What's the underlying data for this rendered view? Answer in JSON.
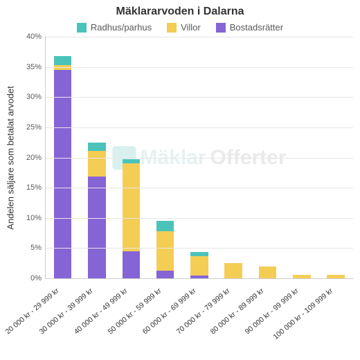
{
  "chart": {
    "type": "stacked-bar",
    "title": "Mäklararvoden i Dalarna",
    "title_fontsize": 16,
    "ylabel": "Andelen säljare som betalat arvodet",
    "ylabel_fontsize": 13,
    "ylim": [
      0,
      40
    ],
    "ytick_step": 5,
    "y_suffix": "%",
    "background_color": "#ffffff",
    "grid_color": "#e6e6e6",
    "axis_color": "#cccccc",
    "tick_font_color": "#595959",
    "tick_fontsize": 11,
    "xlabel_fontsize": 10.5,
    "xlabel_rotation_deg": -40,
    "bar_width_pct": 52,
    "legend_position": "top-center",
    "watermark": {
      "text1": "Mäklar",
      "text2": "Offerter",
      "color1": "rgba(120,180,180,0.18)",
      "color2": "rgba(170,170,170,0.25)",
      "fontsize": 30
    },
    "series": [
      {
        "key": "bostadsratter",
        "label": "Bostadsrätter",
        "color": "#8564d6"
      },
      {
        "key": "villor",
        "label": "Villor",
        "color": "#f4cd55"
      },
      {
        "key": "radhus",
        "label": "Radhus/parhus",
        "color": "#4bc3bb"
      }
    ],
    "legend_order": [
      "radhus",
      "villor",
      "bostadsratter"
    ],
    "categories": [
      "20 000 kr - 29 999 kr",
      "30 000 kr - 39 999 kr",
      "40 000 kr - 49 999 kr",
      "50 000 kr - 59 999 kr",
      "60 000 kr - 69 999 kr",
      "70 000 kr - 79 999 kr",
      "80 000 kr - 89 999 kr",
      "90 000 kr - 99 999 kr",
      "100 000 kr - 109 999 kr"
    ],
    "data": [
      {
        "bostadsratter": 34.5,
        "villor": 0.8,
        "radhus": 1.5
      },
      {
        "bostadsratter": 16.8,
        "villor": 4.3,
        "radhus": 1.4
      },
      {
        "bostadsratter": 4.5,
        "villor": 14.5,
        "radhus": 0.7
      },
      {
        "bostadsratter": 1.3,
        "villor": 6.5,
        "radhus": 1.7
      },
      {
        "bostadsratter": 0.5,
        "villor": 3.2,
        "radhus": 0.7
      },
      {
        "bostadsratter": 0.0,
        "villor": 2.5,
        "radhus": 0.0
      },
      {
        "bostadsratter": 0.0,
        "villor": 1.9,
        "radhus": 0.0
      },
      {
        "bostadsratter": 0.0,
        "villor": 0.6,
        "radhus": 0.0
      },
      {
        "bostadsratter": 0.0,
        "villor": 0.6,
        "radhus": 0.0
      }
    ]
  }
}
